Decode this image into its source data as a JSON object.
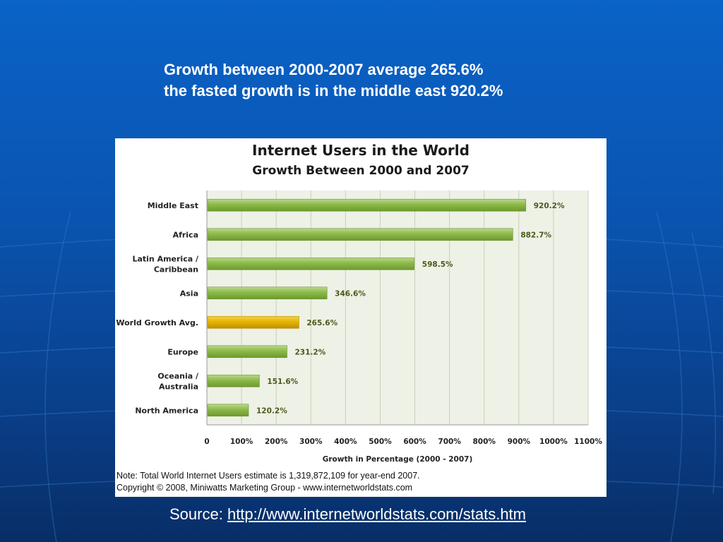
{
  "slide": {
    "headline_line1": "Growth between 2000-2007 average 265.6%",
    "headline_line2": "the fasted growth is in the middle east 920.2%",
    "source_label": "Source:",
    "source_link": "http://www.internetworldstats.com/stats.htm"
  },
  "colors": {
    "background": "#0a54b0",
    "bar_green": "#8db94a",
    "bar_highlight": "#e6b400",
    "plot_bg": "#eef1e6",
    "label_value": "#4a5a1a"
  },
  "chart_data": {
    "type": "bar",
    "orientation": "horizontal",
    "title": "Internet Users in the World",
    "subtitle": "Growth Between 2000 and 2007",
    "xlabel": "Growth in Percentage (2000 - 2007)",
    "xlim": [
      0,
      1100
    ],
    "xticks": [
      0,
      100,
      200,
      300,
      400,
      500,
      600,
      700,
      800,
      900,
      1000,
      1100
    ],
    "xtick_labels": [
      "0",
      "100%",
      "200%",
      "300%",
      "400%",
      "500%",
      "600%",
      "700%",
      "800%",
      "900%",
      "1000%",
      "1100%"
    ],
    "grid": true,
    "categories": [
      [
        "Middle East"
      ],
      [
        "Africa"
      ],
      [
        "Latin America /",
        "Caribbean"
      ],
      [
        "Asia"
      ],
      [
        "World Growth Avg."
      ],
      [
        "Europe"
      ],
      [
        "Oceania  /",
        "Australia"
      ],
      [
        "North America"
      ]
    ],
    "values": [
      920.2,
      882.7,
      598.5,
      346.6,
      265.6,
      231.2,
      151.6,
      120.2
    ],
    "value_labels": [
      "920.2%",
      "882.7%",
      "598.5%",
      "346.6%",
      "265.6%",
      "231.2%",
      "151.6%",
      "120.2%"
    ],
    "highlight_index": 4,
    "notes": [
      "Note: Total World Internet Users estimate is 1,319,872,109 for year-end 2007.",
      "Copyright © 2008, Miniwatts Marketing Group - www.internetworldstats.com"
    ]
  }
}
